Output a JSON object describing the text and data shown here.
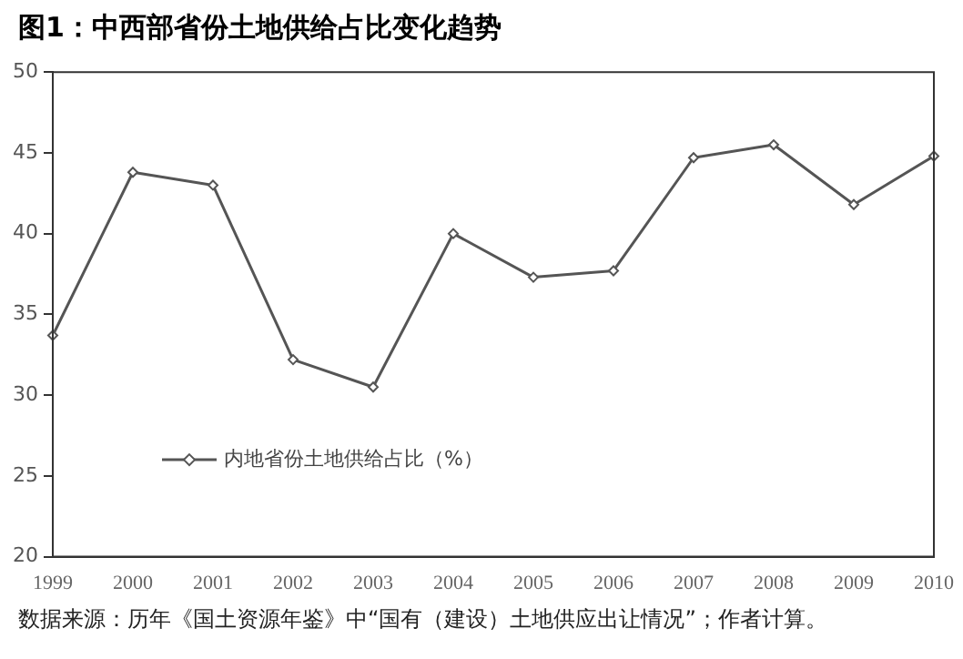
{
  "chart_data": {
    "type": "line",
    "title": "图1：中西部省份土地供给占比变化趋势",
    "categories": [
      "1999",
      "2000",
      "2001",
      "2002",
      "2003",
      "2004",
      "2005",
      "2006",
      "2007",
      "2008",
      "2009",
      "2010"
    ],
    "series": [
      {
        "name": "内地省份土地供给占比（%）",
        "color": "#555555",
        "values": [
          33.7,
          43.8,
          43.0,
          32.2,
          30.5,
          40.0,
          37.3,
          37.7,
          44.7,
          45.5,
          41.8,
          44.8
        ]
      }
    ],
    "ylim": [
      20,
      50
    ],
    "yticks": [
      20,
      25,
      30,
      35,
      40,
      45,
      50
    ],
    "grid": false,
    "legend": "bottom left",
    "marker": "diamond",
    "line_style": "solid",
    "annotations": [
      "数据来源：历年《国土资源年鉴》中“国有（建设）土地供应出让情况”；作者计算。"
    ]
  }
}
